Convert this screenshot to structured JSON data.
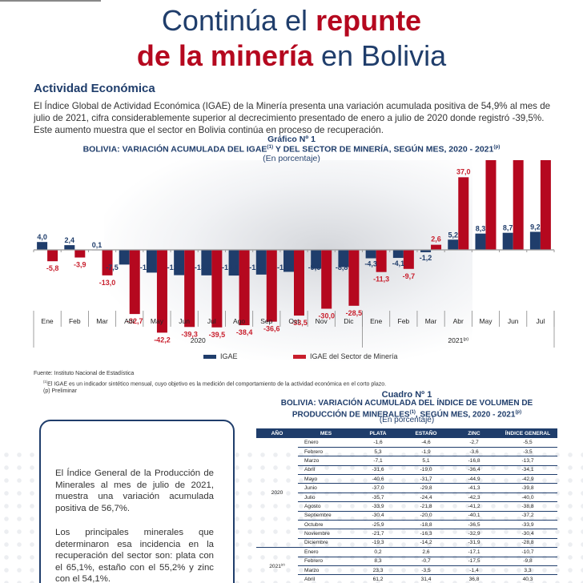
{
  "header": {
    "title_line1_a": "Continúa el ",
    "title_line1_b": "repunte",
    "title_line2_a": "de la minería",
    "title_line2_b": " en Bolivia"
  },
  "section": {
    "heading": "Actividad Económica",
    "intro": "El Índice Global de Actividad Económica (IGAE) de la Minería presenta una variación acumulada positiva de 54,9% al mes de julio de 2021, cifra considerablemente superior al decrecimiento presentado de enero a julio de 2020 donde registró -39,5%. Este aumento muestra que el sector en Bolivia continúa en proceso de recuperación."
  },
  "chart_data": {
    "type": "bar",
    "label": "Gráfico Nº 1",
    "title": "BOLIVIA: VARIACIÓN ACUMULADA DEL IGAE",
    "title_sup1": "(1)",
    "title_rest": " Y DEL SECTOR DE MINERÍA, SEGÚN MES, 2020 - 2021",
    "title_sup2": "(p)",
    "subtitle": "(En porcentaje)",
    "categories": [
      "Ene",
      "Feb",
      "Mar",
      "Abr",
      "May",
      "Jun",
      "Jul",
      "Ago",
      "Sep",
      "Oct",
      "Nov",
      "Dic",
      "Ene",
      "Feb",
      "Mar",
      "Abr",
      "May",
      "Jun",
      "Jul"
    ],
    "year_groups": [
      {
        "label": "2020",
        "sup": "",
        "count": 12
      },
      {
        "label": "2021",
        "sup": "(p)",
        "count": 7
      }
    ],
    "series": [
      {
        "name": "IGAE",
        "color": "#1f3d6b",
        "values": [
          4.0,
          2.4,
          0.1,
          -7.5,
          -11.6,
          -12.9,
          -13.0,
          -13.1,
          -12.6,
          -11.2,
          -9.6,
          -8.8,
          -4.3,
          -4.1,
          -1.2,
          5.2,
          8.3,
          8.7,
          9.2
        ]
      },
      {
        "name": "IGAE del Sector de Minería",
        "color": "#b5081f",
        "values": [
          -5.8,
          -3.9,
          -13.0,
          -32.7,
          -42.2,
          -39.3,
          -39.5,
          -38.4,
          -36.6,
          -33.5,
          -30.0,
          -28.5,
          -11.3,
          -9.7,
          2.6,
          37.0,
          61.1,
          52.4,
          54.9
        ]
      }
    ],
    "ylim": [
      -45,
      65
    ],
    "grid": false,
    "legend": "bottom-center",
    "xlabel": "",
    "ylabel": ""
  },
  "source": {
    "line1": "Fuente: Instituto Nacional de Estadística",
    "line2_sup": "(1)",
    "line2": "El IGAE es un indicador sintético mensual, cuyo objetivo es la medición del comportamiento de la actividad económica en el corto plazo.",
    "line3": "(p) Preliminar"
  },
  "callout": {
    "p1": "El Índice General de la Producción de Minerales al mes de julio de 2021, muestra una variación acumulada positiva de 56,7%.",
    "p2": "Los principales minerales que determinaron esa incidencia en la recuperación del sector son: plata con el 65,1%, estaño con el 55,2% y zinc con el 54,1%."
  },
  "table": {
    "label": "Cuadro Nº 1",
    "title1": "BOLIVIA: VARIACIÓN ACUMULADA DEL ÍNDICE DE VOLUMEN DE",
    "title2": "PRODUCCIÓN DE MINERALES",
    "title2_sup1": "(1)",
    "title2_rest": ", SEGÚN MES, 2020 - 2021",
    "title2_sup2": "(p)",
    "subtitle": "(En porcentaje)",
    "headers": [
      "AÑO",
      "MES",
      "PLATA",
      "ESTAÑO",
      "ZINC",
      "ÍNDICE GENERAL"
    ],
    "groups": [
      {
        "year": "2020",
        "sup": "",
        "rows": [
          [
            "Enero",
            "-1,6",
            "-4,6",
            "-2,7",
            "-5,5"
          ],
          [
            "Febrero",
            "5,3",
            "-1,9",
            "-3,6",
            "-3,5"
          ],
          [
            "Marzo",
            "-7,1",
            "5,1",
            "-16,8",
            "-13,7"
          ],
          [
            "Abril",
            "-31,6",
            "-19,0",
            "-36,4",
            "-34,1"
          ],
          [
            "Mayo",
            "-40,6",
            "-31,7",
            "-44,9",
            "-42,9"
          ],
          [
            "Junio",
            "-37,0",
            "-29,8",
            "-41,3",
            "-39,8"
          ],
          [
            "Julio",
            "-35,7",
            "-24,4",
            "-42,3",
            "-40,0"
          ],
          [
            "Agosto",
            "-33,9",
            "-21,8",
            "-41,2",
            "-38,8"
          ],
          [
            "Septiembre",
            "-30,4",
            "-20,0",
            "-40,1",
            "-37,2"
          ],
          [
            "Octubre",
            "-25,9",
            "-18,8",
            "-36,5",
            "-33,9"
          ],
          [
            "Noviembre",
            "-21,7",
            "-16,3",
            "-32,9",
            "-30,4"
          ],
          [
            "Diciembre",
            "-19,3",
            "-14,2",
            "-31,9",
            "-28,8"
          ]
        ]
      },
      {
        "year": "2021",
        "sup": "(p)",
        "rows": [
          [
            "Enero",
            "0,2",
            "2,6",
            "-17,1",
            "-10,7"
          ],
          [
            "Febrero",
            "8,3",
            "-0,7",
            "-17,5",
            "-9,8"
          ],
          [
            "Marzo",
            "23,3",
            "-3,5",
            "-1,4",
            "3,3"
          ],
          [
            "Abril",
            "61,2",
            "31,4",
            "36,8",
            "40,3"
          ]
        ]
      }
    ]
  }
}
